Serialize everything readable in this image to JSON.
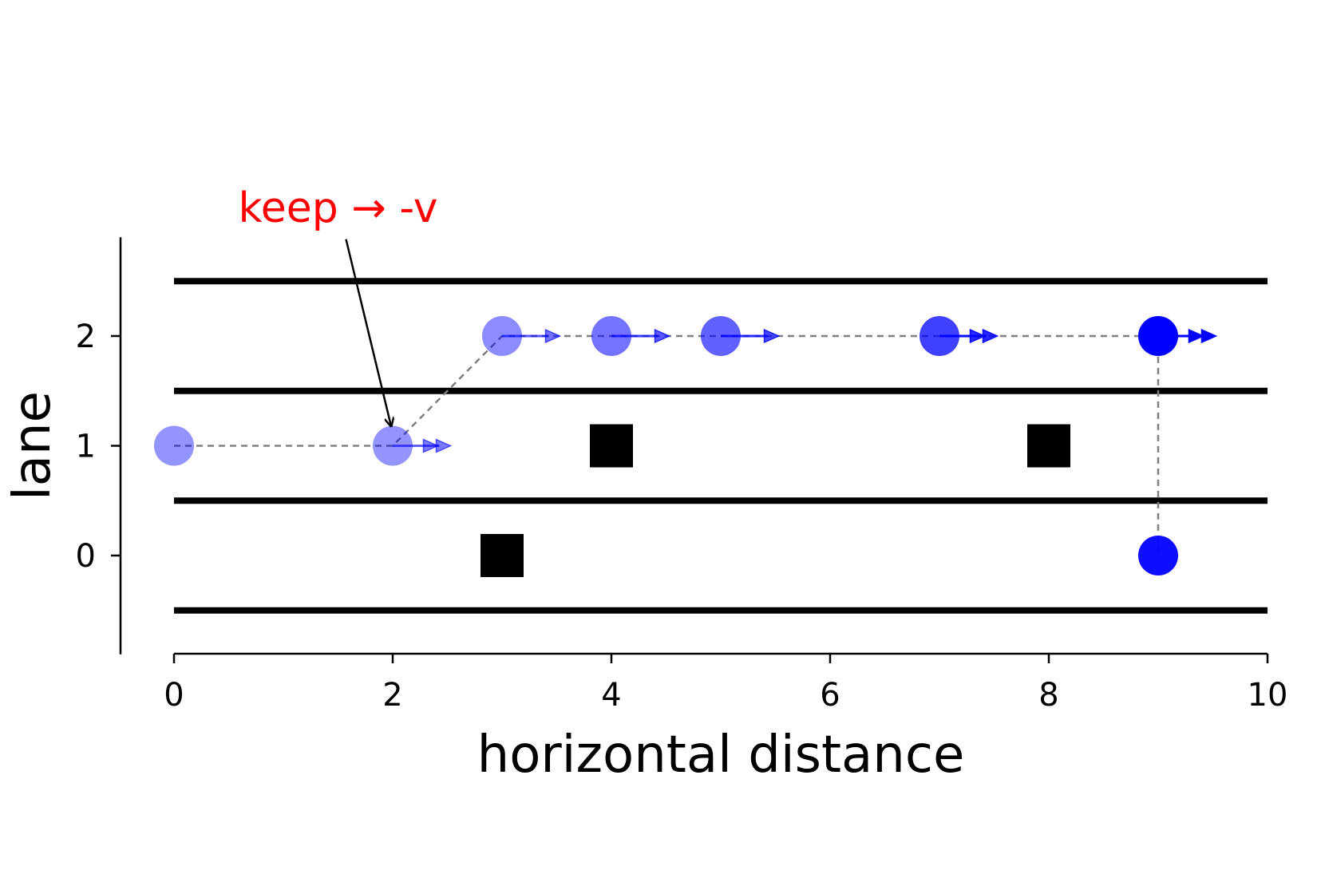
{
  "chart_data": {
    "type": "scatter",
    "title": "",
    "xlabel": "horizontal distance",
    "ylabel": "lane",
    "xlim": [
      0,
      10
    ],
    "ylim": [
      -0.9,
      2.9
    ],
    "xticks": [
      0,
      2,
      4,
      6,
      8,
      10
    ],
    "yticks": [
      0,
      1,
      2
    ],
    "grid": false,
    "lane_boundaries": [
      -0.5,
      0.5,
      1.5,
      2.5
    ],
    "obstacles": [
      {
        "x": 3,
        "y": 0
      },
      {
        "x": 4,
        "y": 1
      },
      {
        "x": 8,
        "y": 1
      }
    ],
    "trajectory": [
      {
        "x": 0,
        "y": 1,
        "velocity_arrows": 0,
        "opacity": 0.42
      },
      {
        "x": 2,
        "y": 1,
        "velocity_arrows": 2,
        "opacity": 0.42
      },
      {
        "x": 3,
        "y": 2,
        "velocity_arrows": 1,
        "opacity": 0.45
      },
      {
        "x": 4,
        "y": 2,
        "velocity_arrows": 1,
        "opacity": 0.55
      },
      {
        "x": 5,
        "y": 2,
        "velocity_arrows": 1,
        "opacity": 0.62
      },
      {
        "x": 7,
        "y": 2,
        "velocity_arrows": 2,
        "opacity": 0.75
      },
      {
        "x": 9,
        "y": 2,
        "velocity_arrows": 2,
        "opacity": 1.0
      },
      {
        "x": 9,
        "y": 0,
        "velocity_arrows": 0,
        "opacity": 0.95
      }
    ],
    "annotations": [
      {
        "text": "keep → -v",
        "color": "#ff0000",
        "text_x": 1.5,
        "text_y": 3.1,
        "target_x": 2,
        "target_y": 1.15
      }
    ],
    "colors": {
      "point": "#0000ff",
      "path": "#808080",
      "lane_line": "#000000",
      "obstacle": "#000000"
    }
  }
}
